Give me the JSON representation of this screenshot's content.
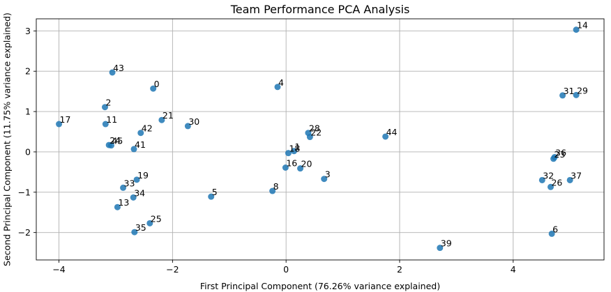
{
  "chart_data": {
    "type": "scatter",
    "title": "Team Performance PCA Analysis",
    "xlabel": "First Principal Component (76.26% variance explained)",
    "ylabel": "Second Principal Component (11.75% variance explained)",
    "xlim": [
      -4.4,
      5.6
    ],
    "ylim": [
      -2.68,
      3.3
    ],
    "xticks": [
      -4,
      -2,
      0,
      2,
      4
    ],
    "yticks": [
      -2,
      -1,
      0,
      1,
      2,
      3
    ],
    "grid": true,
    "point_color": "#1f77b4",
    "points": [
      {
        "label": "0",
        "x": -2.34,
        "y": 1.57
      },
      {
        "label": "1",
        "x": 0.14,
        "y": 0.02
      },
      {
        "label": "2",
        "x": -3.19,
        "y": 1.11
      },
      {
        "label": "3",
        "x": 0.67,
        "y": -0.67
      },
      {
        "label": "4",
        "x": -0.15,
        "y": 1.61
      },
      {
        "label": "5",
        "x": -1.32,
        "y": -1.11
      },
      {
        "label": "6",
        "x": 4.68,
        "y": -2.03
      },
      {
        "label": "8",
        "x": -0.24,
        "y": -0.97
      },
      {
        "label": "11",
        "x": -3.18,
        "y": 0.69
      },
      {
        "label": "13",
        "x": -2.97,
        "y": -1.37
      },
      {
        "label": "14",
        "x": 5.11,
        "y": 3.03
      },
      {
        "label": "16",
        "x": -0.01,
        "y": -0.39
      },
      {
        "label": "17",
        "x": -4.0,
        "y": 0.69
      },
      {
        "label": "18",
        "x": 0.04,
        "y": -0.03
      },
      {
        "label": "19",
        "x": -2.63,
        "y": -0.69
      },
      {
        "label": "20",
        "x": 0.25,
        "y": -0.41
      },
      {
        "label": "21",
        "x": -2.19,
        "y": 0.79
      },
      {
        "label": "22",
        "x": 0.42,
        "y": 0.37
      },
      {
        "label": "24",
        "x": -3.12,
        "y": 0.17
      },
      {
        "label": "25",
        "x": -2.4,
        "y": -1.77
      },
      {
        "label": "26",
        "x": 4.66,
        "y": -0.87
      },
      {
        "label": "28",
        "x": 0.39,
        "y": 0.47
      },
      {
        "label": "29",
        "x": 5.11,
        "y": 1.41
      },
      {
        "label": "30",
        "x": -1.73,
        "y": 0.64
      },
      {
        "label": "31",
        "x": 4.87,
        "y": 1.4
      },
      {
        "label": "32",
        "x": 4.51,
        "y": -0.7
      },
      {
        "label": "33",
        "x": -2.87,
        "y": -0.89
      },
      {
        "label": "34",
        "x": -2.69,
        "y": -1.13
      },
      {
        "label": "35",
        "x": -2.67,
        "y": -1.99
      },
      {
        "label": "36",
        "x": 4.73,
        "y": -0.13
      },
      {
        "label": "37",
        "x": 5.0,
        "y": -0.7
      },
      {
        "label": "39",
        "x": 2.71,
        "y": -2.38
      },
      {
        "label": "41",
        "x": -2.68,
        "y": 0.07
      },
      {
        "label": "42",
        "x": -2.56,
        "y": 0.47
      },
      {
        "label": "43",
        "x": -3.06,
        "y": 1.97
      },
      {
        "label": "44",
        "x": 1.75,
        "y": 0.38
      },
      {
        "label": "45",
        "x": -3.08,
        "y": 0.16
      },
      {
        "label": "23",
        "x": 4.71,
        "y": -0.17
      }
    ]
  }
}
